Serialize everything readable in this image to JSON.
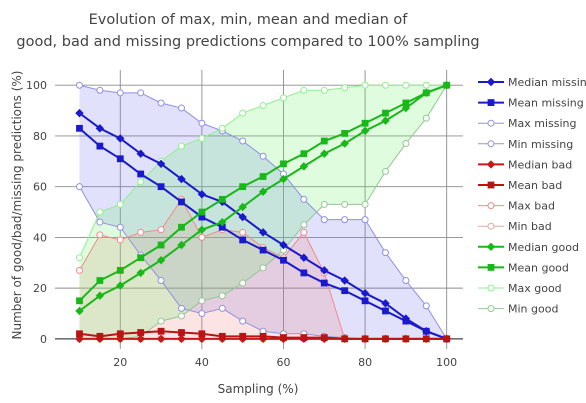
{
  "chart_data": {
    "type": "line",
    "title_line1": "Evolution of max, min, mean and median of",
    "title_line2": "good, bad and missing predictions compared to 100% sampling",
    "xlabel": "Sampling (%)",
    "ylabel": "Number of good/bad/missing predictions (%)",
    "xlim": [
      4,
      104
    ],
    "ylim": [
      -4,
      106
    ],
    "x_ticks": [
      20,
      40,
      60,
      80,
      100
    ],
    "y_ticks": [
      0,
      20,
      40,
      60,
      80,
      100
    ],
    "grid": true,
    "legend_position": "right",
    "x": [
      10,
      15,
      20,
      25,
      30,
      35,
      40,
      45,
      50,
      55,
      60,
      65,
      70,
      75,
      80,
      85,
      90,
      95,
      100
    ],
    "bands": [
      {
        "group": "missing",
        "fill": "rgba(105,105,235,0.20)",
        "max_series": "Max missing",
        "min_series": "Min missing"
      },
      {
        "group": "bad",
        "fill": "rgba(240,130,130,0.22)",
        "max_series": "Max bad",
        "min_series": "Min bad"
      },
      {
        "group": "good",
        "fill": "rgba(110,240,110,0.22)",
        "max_series": "Max good",
        "min_series": "Min good"
      }
    ],
    "series": [
      {
        "name": "Median missing",
        "color": "#1a1acc",
        "marker": "diamond",
        "width": 2,
        "values": [
          89,
          83,
          79,
          73,
          69,
          63,
          57,
          54,
          48,
          42,
          37,
          32,
          27,
          23,
          18,
          14,
          8,
          3,
          0
        ]
      },
      {
        "name": "Mean missing",
        "color": "#1a1acc",
        "marker": "square",
        "width": 2,
        "values": [
          83,
          76,
          71,
          65,
          60,
          54,
          48,
          44,
          39,
          35,
          31,
          26,
          22,
          19,
          15,
          11,
          7,
          3,
          0
        ]
      },
      {
        "name": "Max missing",
        "color": "#8f8fe8",
        "marker": "circle-open",
        "width": 1,
        "values": [
          100,
          98,
          97,
          97,
          93,
          91,
          85,
          82,
          78,
          72,
          65,
          55,
          47,
          47,
          47,
          34,
          23,
          13,
          0
        ]
      },
      {
        "name": "Min missing",
        "color": "#9393d8",
        "marker": "circle-open",
        "width": 1,
        "values": [
          60,
          46,
          44,
          33,
          23,
          12,
          10,
          12,
          7,
          3,
          2,
          2,
          1,
          0.5,
          0,
          0,
          0,
          0,
          0
        ]
      },
      {
        "name": "Median bad",
        "color": "#c81818",
        "marker": "diamond",
        "width": 2,
        "values": [
          0,
          0,
          0,
          0,
          0,
          0,
          0,
          0,
          0,
          0,
          0,
          0,
          0,
          0,
          0,
          0,
          0,
          0,
          0
        ]
      },
      {
        "name": "Mean bad",
        "color": "#b81414",
        "marker": "square",
        "width": 2,
        "values": [
          2,
          1,
          2,
          2.5,
          3,
          2.5,
          2,
          1,
          1,
          1,
          0.5,
          0.5,
          0.5,
          0,
          0,
          0,
          0,
          0,
          0
        ]
      },
      {
        "name": "Max bad",
        "color": "#f28a8a",
        "marker": "circle-open",
        "width": 1,
        "values": [
          27,
          41,
          39,
          42,
          43,
          55,
          40,
          43,
          42,
          36,
          32,
          42,
          26,
          0,
          0,
          0,
          0,
          0,
          0
        ]
      },
      {
        "name": "Min bad",
        "color": "#e0a8a8",
        "marker": "circle-open",
        "width": 1,
        "values": [
          0,
          0,
          0,
          0,
          0,
          0,
          0,
          0,
          0,
          0,
          0,
          0,
          0,
          0,
          0,
          0,
          0,
          0,
          0
        ]
      },
      {
        "name": "Median good",
        "color": "#18b818",
        "marker": "diamond",
        "width": 2,
        "values": [
          11,
          17,
          21,
          26,
          31,
          37,
          43,
          46,
          52,
          58,
          63,
          68,
          73,
          77,
          82,
          86,
          91,
          97,
          100
        ]
      },
      {
        "name": "Mean good",
        "color": "#18b818",
        "marker": "square",
        "width": 2,
        "values": [
          15,
          23,
          27,
          32,
          37,
          44,
          50,
          55,
          60,
          64,
          69,
          73,
          78,
          81,
          85,
          89,
          93,
          97,
          100
        ]
      },
      {
        "name": "Max good",
        "color": "#8ff08f",
        "marker": "circle-open",
        "width": 1,
        "values": [
          32,
          50,
          53,
          62,
          70,
          76,
          79,
          83,
          89,
          92,
          95,
          98,
          98,
          99,
          100,
          100,
          100,
          100,
          100
        ]
      },
      {
        "name": "Min good",
        "color": "#93c893",
        "marker": "circle-open",
        "width": 1,
        "values": [
          0,
          0,
          0,
          1,
          7,
          9,
          15,
          17,
          22,
          28,
          35,
          45,
          53,
          53,
          53,
          66,
          77,
          87,
          100
        ]
      }
    ]
  }
}
